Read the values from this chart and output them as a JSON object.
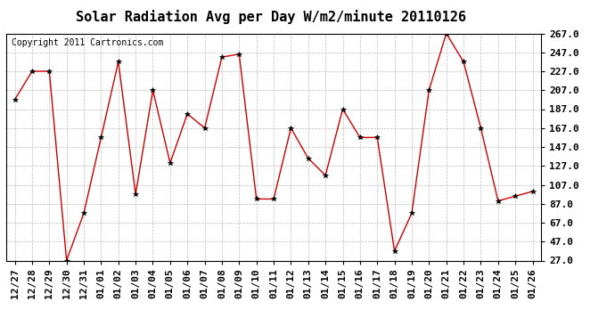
{
  "title": "Solar Radiation Avg per Day W/m2/minute 20110126",
  "copyright": "Copyright 2011 Cartronics.com",
  "dates": [
    "12/27",
    "12/28",
    "12/29",
    "12/30",
    "12/31",
    "01/01",
    "01/02",
    "01/03",
    "01/04",
    "01/05",
    "01/06",
    "01/07",
    "01/08",
    "01/09",
    "01/10",
    "01/11",
    "01/12",
    "01/13",
    "01/14",
    "01/15",
    "01/16",
    "01/17",
    "01/18",
    "01/19",
    "01/20",
    "01/21",
    "01/22",
    "01/23",
    "01/24",
    "01/25",
    "01/26"
  ],
  "values": [
    197,
    227,
    227,
    27,
    77,
    157,
    237,
    97,
    207,
    130,
    182,
    167,
    242,
    245,
    92,
    92,
    167,
    135,
    117,
    187,
    157,
    157,
    37,
    77,
    207,
    267,
    237,
    167,
    90,
    95,
    100
  ],
  "line_color": "#cc0000",
  "marker": "*",
  "marker_color": "#000000",
  "bg_color": "#ffffff",
  "plot_bg_color": "#ffffff",
  "grid_color": "#bbbbbb",
  "ylim": [
    27,
    267
  ],
  "yticks": [
    27,
    47,
    67,
    87,
    107,
    127,
    147,
    167,
    187,
    207,
    227,
    247,
    267
  ],
  "title_fontsize": 11,
  "copyright_fontsize": 7,
  "tick_fontsize": 8
}
